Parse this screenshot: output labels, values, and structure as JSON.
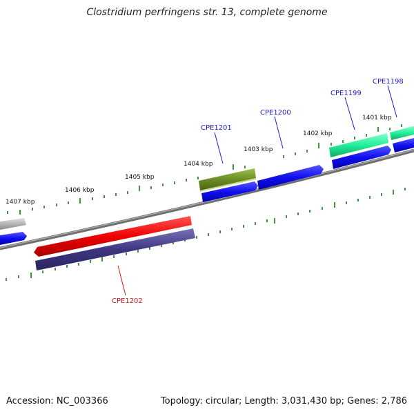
{
  "title": "Clostridium perfringens str. 13, complete genome",
  "footer": {
    "accession": "Accession: NC_003366",
    "topology": "Topology: circular; Length: 3,031,430 bp; Genes: 2,786"
  },
  "kbp_labels": [
    "1407 kbp",
    "1406 kbp",
    "1405 kbp",
    "1404 kbp",
    "1403 kbp",
    "1402 kbp",
    "1401 kbp"
  ],
  "genes": [
    {
      "name": "CPE1201",
      "color": "#1a1acc"
    },
    {
      "name": "CPE1200",
      "color": "#1a1acc"
    },
    {
      "name": "CPE1199",
      "color": "#1a1acc"
    },
    {
      "name": "CPE1198",
      "color": "#1a1acc"
    },
    {
      "name": "CPE1202",
      "color": "#cc1a1a"
    }
  ],
  "colors": {
    "backbone": "#7a7a7a",
    "ticks": "#2e8b2e",
    "cds_blue": "#1010ee",
    "gene_red": "#ee1111",
    "gene_purple": "#4a4090",
    "gene_olive": "#6b8e23",
    "gene_teal": "#22ee99",
    "gene_gray": "#b0b0b0"
  }
}
